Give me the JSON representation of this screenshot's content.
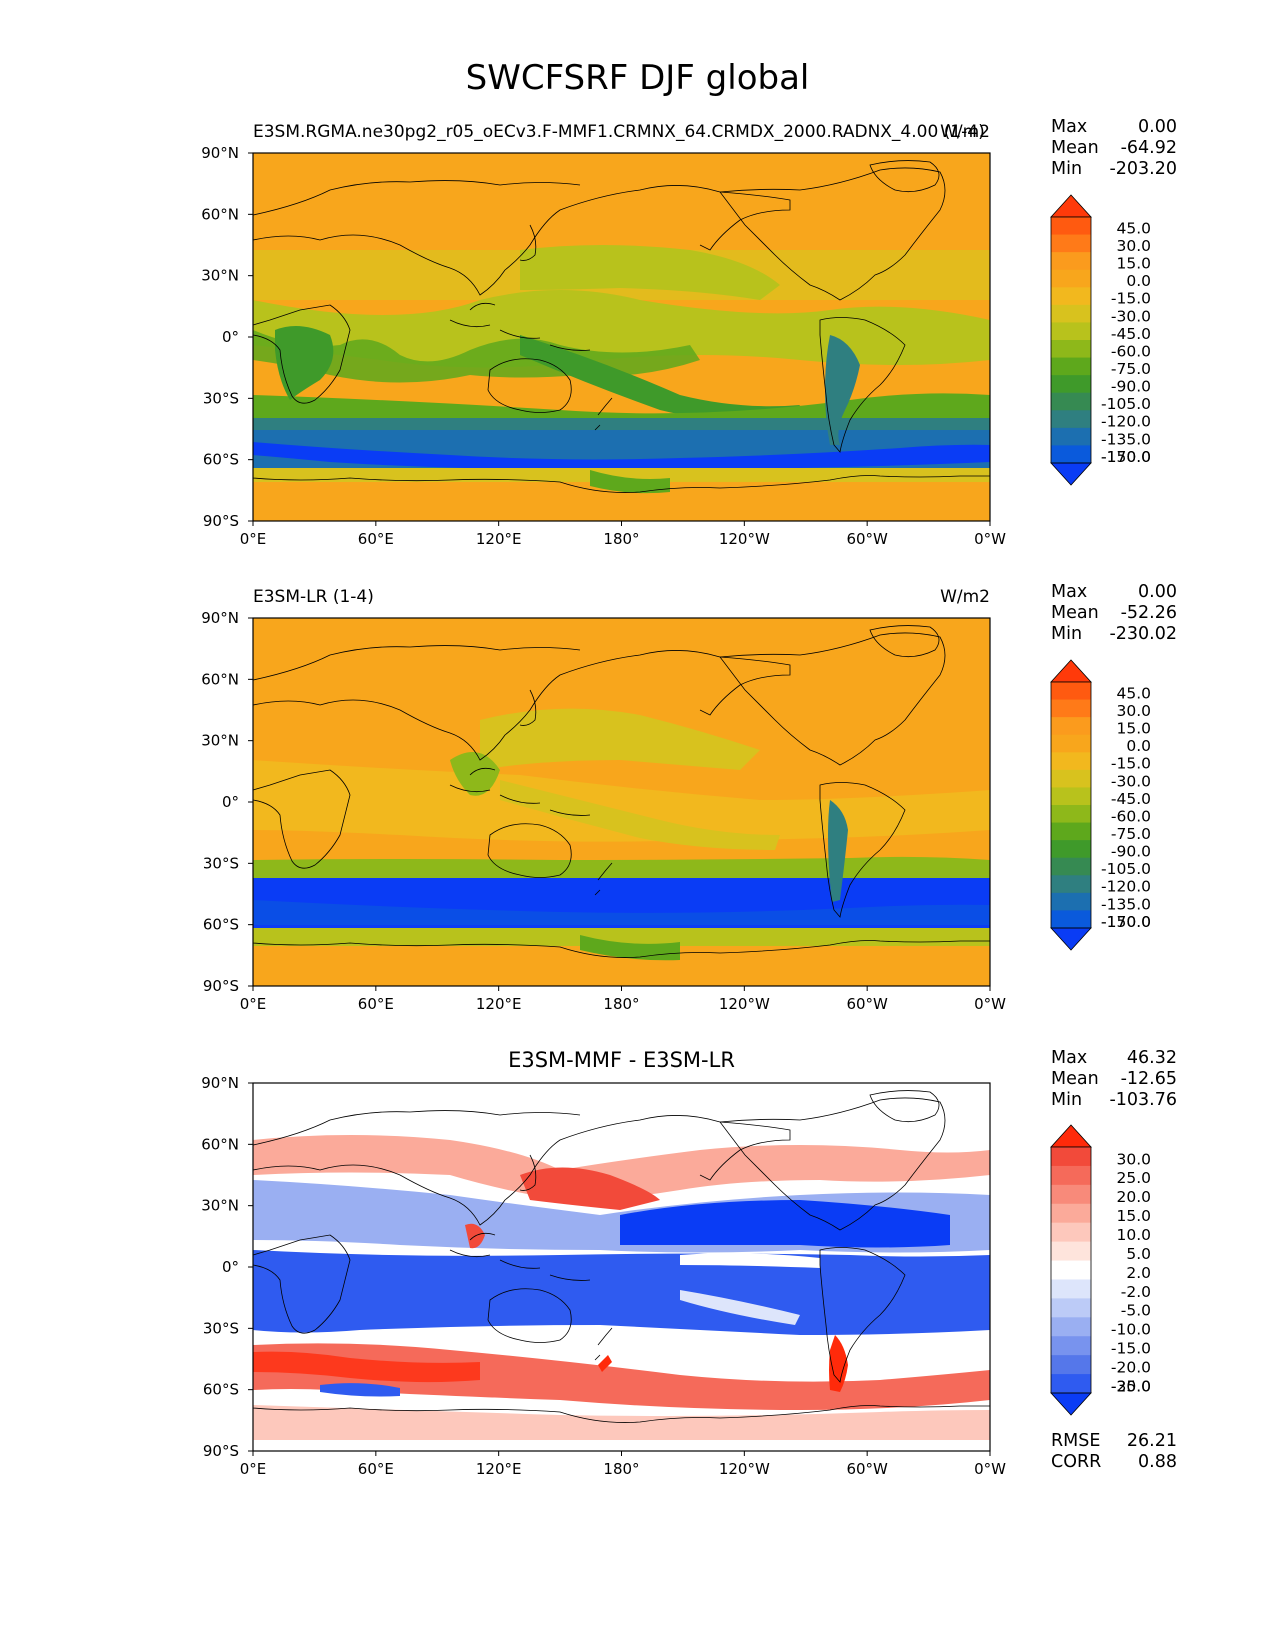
{
  "title": "SWCFSRF DJF global",
  "chart_data": [
    {
      "type": "heatmap",
      "panel": "test",
      "title_left": "E3SM.RGMA.ne30pg2_r05_oECv3.F-MMF1.CRMNX_64.CRMDX_2000.RADNX_4.00 (1-4)",
      "title_right": "W/m2",
      "stats": {
        "max_label": "Max",
        "max": "0.00",
        "mean_label": "Mean",
        "mean": "-64.92",
        "min_label": "Min",
        "min": "-203.20"
      },
      "colorbar_levels": [
        "45.0",
        "30.0",
        "15.0",
        "0.0",
        "-15.0",
        "-30.0",
        "-45.0",
        "-60.0",
        "-75.0",
        "-90.0",
        "-105.0",
        "-120.0",
        "-135.0",
        "-150.0",
        "-170.0"
      ],
      "colorbar_colors": [
        "#ff3a0a",
        "#ff5a10",
        "#ff7a18",
        "#fb9b1d",
        "#f8a61c",
        "#f2b81e",
        "#d8c21e",
        "#b8c21c",
        "#8eb81a",
        "#5ea81c",
        "#3f9a2a",
        "#368a52",
        "#2f7f80",
        "#1c6fb0",
        "#0a5adc",
        "#0a3cf5"
      ],
      "xticks": [
        "0°E",
        "60°E",
        "120°E",
        "180°",
        "120°W",
        "60°W",
        "0°W"
      ],
      "yticks": [
        "90°N",
        "60°N",
        "30°N",
        "0°",
        "30°S",
        "60°S",
        "90°S"
      ],
      "xlim": [
        0,
        360
      ],
      "ylim": [
        -90,
        90
      ]
    },
    {
      "type": "heatmap",
      "panel": "reference",
      "title_left": "E3SM-LR (1-4)",
      "title_right": "W/m2",
      "stats": {
        "max_label": "Max",
        "max": "0.00",
        "mean_label": "Mean",
        "mean": "-52.26",
        "min_label": "Min",
        "min": "-230.02"
      },
      "colorbar_levels": [
        "45.0",
        "30.0",
        "15.0",
        "0.0",
        "-15.0",
        "-30.0",
        "-45.0",
        "-60.0",
        "-75.0",
        "-90.0",
        "-105.0",
        "-120.0",
        "-135.0",
        "-150.0",
        "-170.0"
      ],
      "colorbar_colors": [
        "#ff3a0a",
        "#ff5a10",
        "#ff7a18",
        "#fb9b1d",
        "#f8a61c",
        "#f2b81e",
        "#d8c21e",
        "#b8c21c",
        "#8eb81a",
        "#5ea81c",
        "#3f9a2a",
        "#368a52",
        "#2f7f80",
        "#1c6fb0",
        "#0a5adc",
        "#0a3cf5"
      ],
      "xticks": [
        "0°E",
        "60°E",
        "120°E",
        "180°",
        "120°W",
        "60°W",
        "0°W"
      ],
      "yticks": [
        "90°N",
        "60°N",
        "30°N",
        "0°",
        "30°S",
        "60°S",
        "90°S"
      ],
      "xlim": [
        0,
        360
      ],
      "ylim": [
        -90,
        90
      ]
    },
    {
      "type": "heatmap",
      "panel": "difference",
      "title_center": "E3SM-MMF - E3SM-LR",
      "stats": {
        "max_label": "Max",
        "max": "46.32",
        "mean_label": "Mean",
        "mean": "-12.65",
        "min_label": "Min",
        "min": "-103.76"
      },
      "extra_stats": {
        "rmse_label": "RMSE",
        "rmse": "26.21",
        "corr_label": "CORR",
        "corr": "0.88"
      },
      "colorbar_levels": [
        "30.0",
        "25.0",
        "20.0",
        "15.0",
        "10.0",
        "5.0",
        "2.0",
        "-2.0",
        "-5.0",
        "-10.0",
        "-15.0",
        "-20.0",
        "-25.0",
        "-30.0"
      ],
      "colorbar_colors": [
        "#ff2a0a",
        "#f24a3a",
        "#f56a5a",
        "#f88a7a",
        "#fbaa9a",
        "#fdc8bc",
        "#fee4dc",
        "#ffffff",
        "#dde5fb",
        "#bccbf7",
        "#9aaff2",
        "#7893ee",
        "#5577ea",
        "#2f5bf0",
        "#0a3cf5"
      ],
      "xticks": [
        "0°E",
        "60°E",
        "120°E",
        "180°",
        "120°W",
        "60°W",
        "0°W"
      ],
      "yticks": [
        "90°N",
        "60°N",
        "30°N",
        "0°",
        "30°S",
        "60°S",
        "90°S"
      ],
      "xlim": [
        0,
        360
      ],
      "ylim": [
        -90,
        90
      ]
    }
  ]
}
